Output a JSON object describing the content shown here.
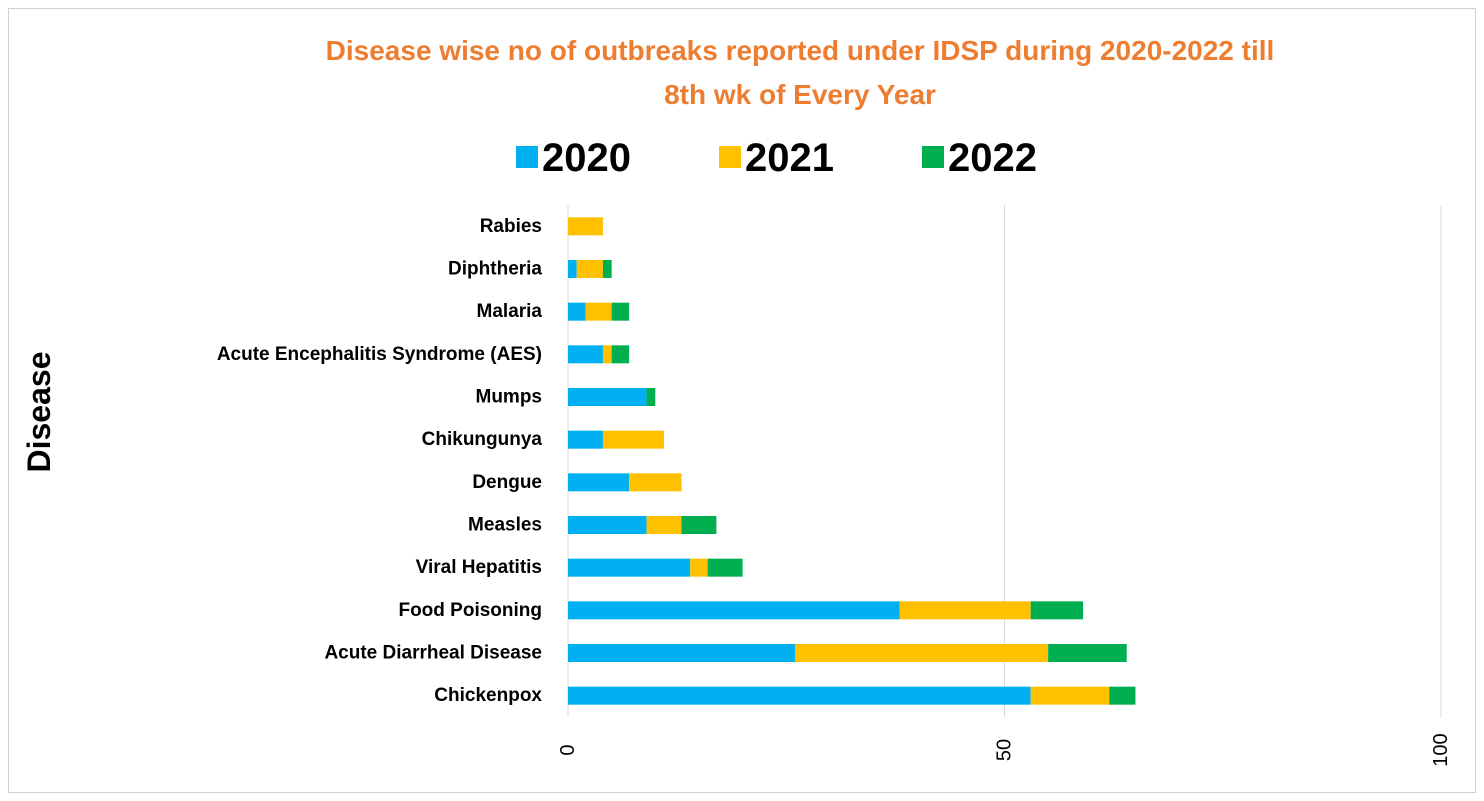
{
  "chart_data": {
    "type": "bar",
    "orientation": "horizontal",
    "stacked": true,
    "title_lines": [
      "Disease wise no of outbreaks reported under IDSP during  2020-2022 till",
      "8th wk of Every Year"
    ],
    "ylabel": "Disease",
    "xlabel": "",
    "xlim": [
      0,
      100
    ],
    "xticks": [
      0,
      50,
      100
    ],
    "grid": true,
    "legend_position": "top",
    "categories": [
      "Rabies",
      "Diphtheria",
      "Malaria",
      "Acute Encephalitis Syndrome (AES)",
      "Mumps",
      "Chikungunya",
      "Dengue",
      "Measles",
      "Viral Hepatitis",
      "Food Poisoning",
      "Acute Diarrheal Disease",
      "Chickenpox"
    ],
    "series": [
      {
        "name": "2020",
        "color": "#00B0F0",
        "values": [
          0,
          1,
          2,
          4,
          9,
          4,
          7,
          9,
          14,
          38,
          26,
          53
        ]
      },
      {
        "name": "2021",
        "color": "#FFC000",
        "values": [
          4,
          3,
          3,
          1,
          0,
          7,
          6,
          4,
          2,
          15,
          29,
          9
        ]
      },
      {
        "name": "2022",
        "color": "#00B050",
        "values": [
          0,
          1,
          2,
          2,
          1,
          0,
          0,
          4,
          4,
          6,
          9,
          3
        ]
      }
    ]
  }
}
